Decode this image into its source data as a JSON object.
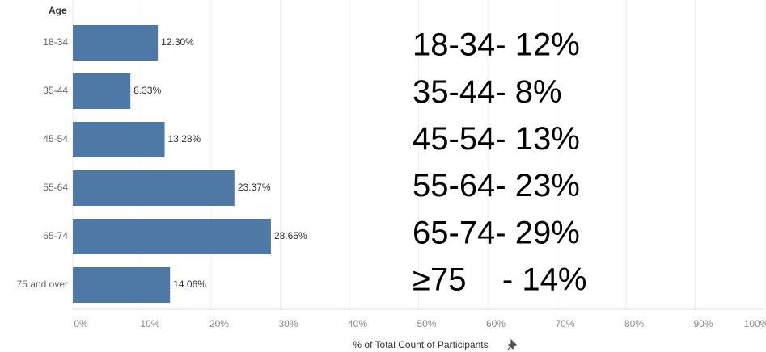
{
  "chart_data": {
    "type": "bar",
    "orientation": "horizontal",
    "y_axis_label": "Age",
    "x_axis_label": "% of Total Count of Participants",
    "categories": [
      "18-34",
      "35-44",
      "45-54",
      "55-64",
      "65-74",
      "75 and over"
    ],
    "values": [
      12.3,
      8.33,
      13.28,
      23.37,
      28.65,
      14.06
    ],
    "value_labels": [
      "12.30%",
      "8.33%",
      "13.28%",
      "23.37%",
      "28.65%",
      "14.06%"
    ],
    "color": "#4e79a7",
    "xlim": [
      0,
      100
    ],
    "xticks": [
      {
        "value": 0,
        "label": "0%"
      },
      {
        "value": 10,
        "label": "10%"
      },
      {
        "value": 20,
        "label": "20%"
      },
      {
        "value": 30,
        "label": "30%"
      },
      {
        "value": 40,
        "label": "40%"
      },
      {
        "value": 50,
        "label": "50%"
      },
      {
        "value": 60,
        "label": "60%"
      },
      {
        "value": 70,
        "label": "70%"
      },
      {
        "value": 80,
        "label": "80%"
      },
      {
        "value": 90,
        "label": "90%"
      },
      {
        "value": 100,
        "label": "100%"
      }
    ],
    "grid": true,
    "annotations": [
      "18-34- 12%",
      "35-44- 8%",
      "45-54- 13%",
      "55-64- 23%",
      "65-74- 29%",
      "≥75    - 14%"
    ]
  }
}
